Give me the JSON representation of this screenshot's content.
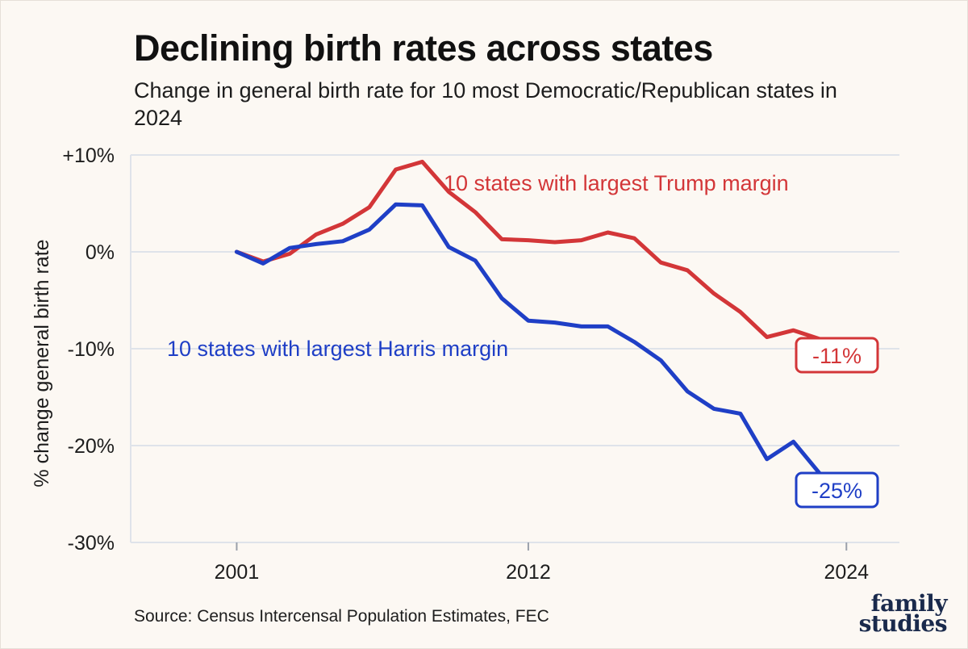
{
  "header": {
    "title": "Declining birth rates across states",
    "subtitle": "Change in general birth rate for 10 most Democratic/Republican states in 2024"
  },
  "footer": {
    "source": "Source: Census Intercensal Population Estimates, FEC",
    "logo_line1": "family",
    "logo_line2": "studies"
  },
  "colors": {
    "trump": "#d33638",
    "harris": "#1f3fc6",
    "grid": "#dfe3ea",
    "background": "#fcf8f3"
  },
  "chart_data": {
    "type": "line",
    "title": "Declining birth rates across states",
    "subtitle": "Change in general birth rate for 10 most Democratic/Republican states in 2024",
    "xlabel": "",
    "ylabel": "% change general birth rate",
    "xlim": [
      1997,
      2026
    ],
    "ylim": [
      -30,
      10
    ],
    "x_ticks": [
      2001,
      2012,
      2024
    ],
    "x_tick_labels": [
      "2001",
      "2012",
      "2024"
    ],
    "y_ticks": [
      10,
      0,
      -10,
      -20,
      -30
    ],
    "y_tick_labels": [
      "+10%",
      "0%",
      "-10%",
      "-20%",
      "-30%"
    ],
    "grid": "horizontal",
    "x": [
      2001,
      2002,
      2003,
      2004,
      2005,
      2006,
      2007,
      2008,
      2009,
      2010,
      2011,
      2012,
      2013,
      2014,
      2015,
      2016,
      2017,
      2018,
      2019,
      2020,
      2021,
      2022,
      2023
    ],
    "series": [
      {
        "name": "10 states with largest Trump margin",
        "color": "#d33638",
        "values": [
          0.0,
          -1.0,
          -0.2,
          1.8,
          2.9,
          4.6,
          8.5,
          9.3,
          6.2,
          4.1,
          1.3,
          1.2,
          1.0,
          1.2,
          2.0,
          1.4,
          -1.1,
          -1.9,
          -4.3,
          -6.2,
          -8.8,
          -8.1,
          -9.0
        ],
        "end_label": "-11%"
      },
      {
        "name": "10 states with largest Harris margin",
        "color": "#1f3fc6",
        "values": [
          0.0,
          -1.2,
          0.4,
          0.8,
          1.1,
          2.3,
          4.9,
          4.8,
          0.5,
          -0.9,
          -4.8,
          -7.1,
          -7.3,
          -7.7,
          -7.7,
          -9.3,
          -11.2,
          -14.4,
          -16.2,
          -16.7,
          -21.4,
          -19.6,
          -22.9
        ],
        "end_label": "-25%"
      }
    ]
  }
}
